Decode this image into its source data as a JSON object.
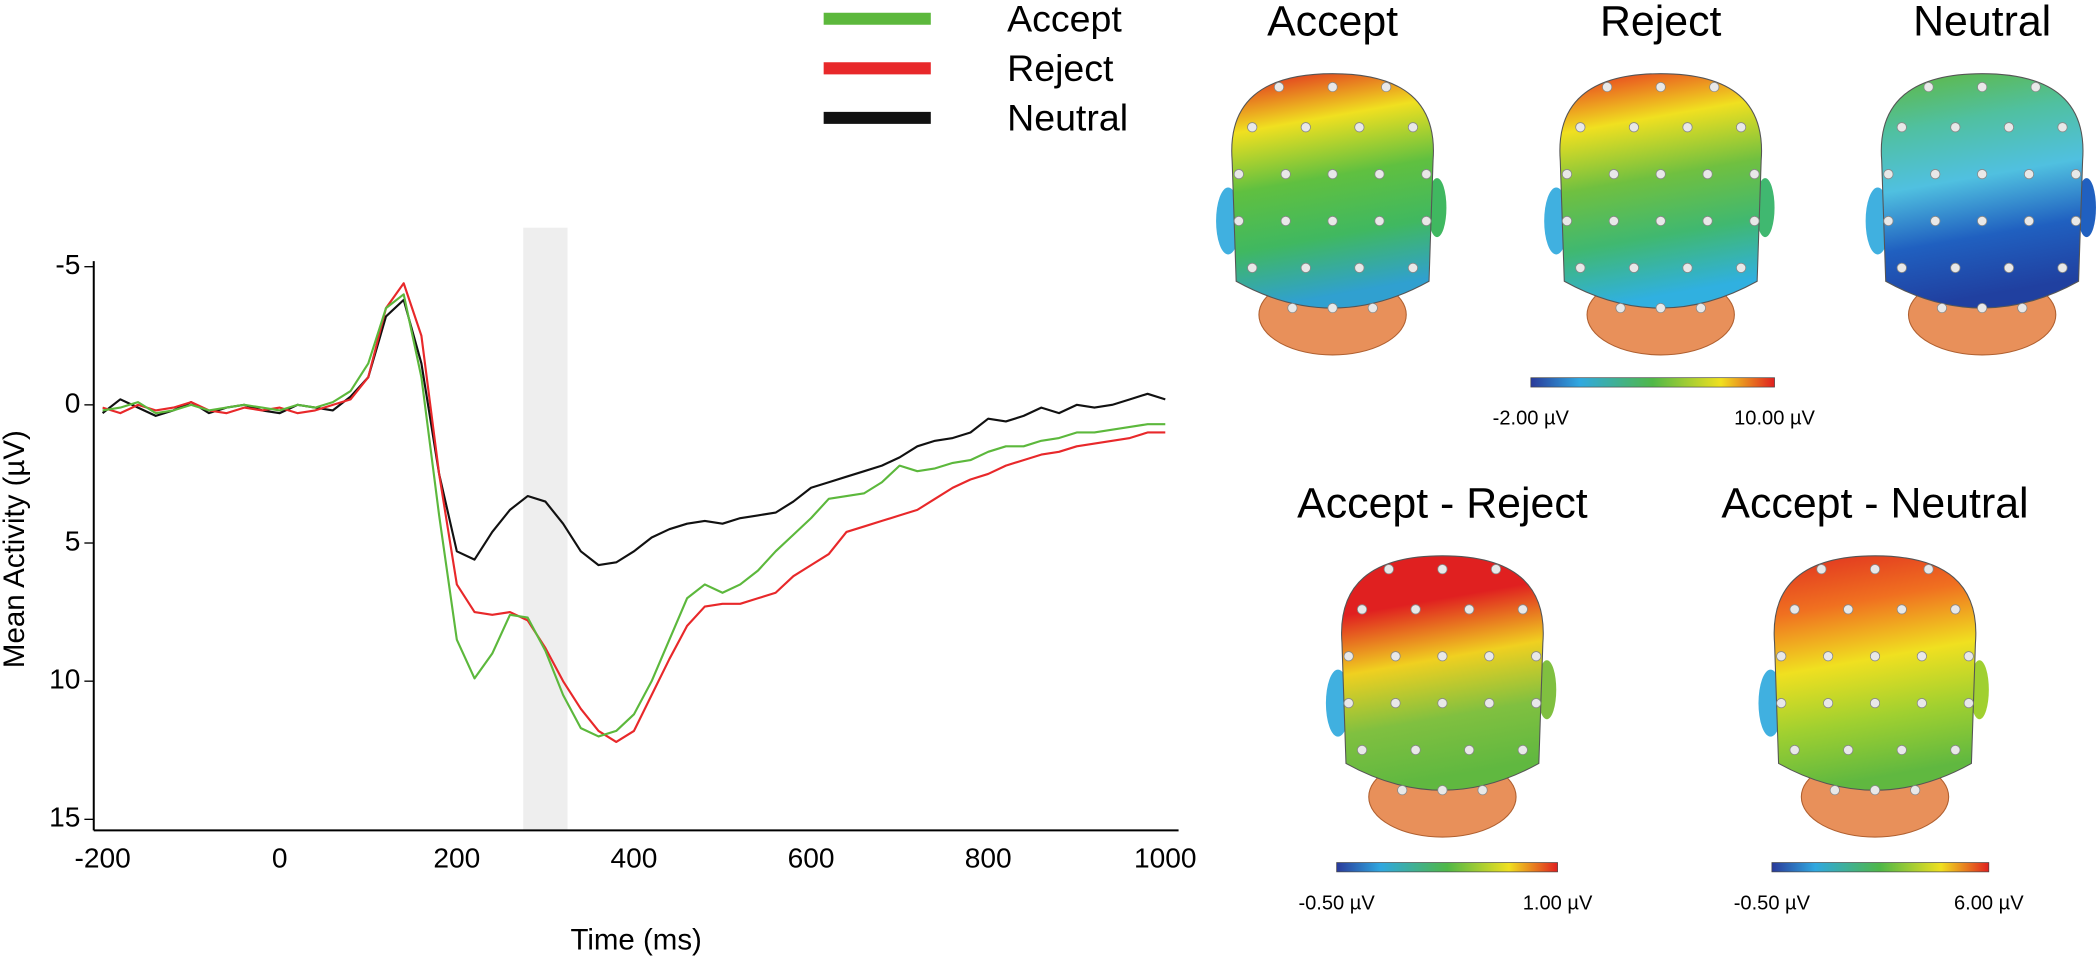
{
  "chart_data": {
    "type": "line",
    "x_label": "Time (ms)",
    "y_label": "Mean Activity (µV)",
    "x": [
      -200,
      -180,
      -160,
      -140,
      -120,
      -100,
      -80,
      -60,
      -40,
      -20,
      0,
      20,
      40,
      60,
      80,
      100,
      120,
      140,
      160,
      180,
      200,
      220,
      240,
      260,
      280,
      300,
      320,
      340,
      360,
      380,
      400,
      420,
      440,
      460,
      480,
      500,
      520,
      540,
      560,
      580,
      600,
      620,
      640,
      660,
      680,
      700,
      720,
      740,
      760,
      780,
      800,
      820,
      840,
      860,
      880,
      900,
      920,
      940,
      960,
      980,
      1000
    ],
    "series": [
      {
        "name": "Accept",
        "color": "#5cb83c",
        "values": [
          0.2,
          0.1,
          -0.1,
          0.3,
          0.2,
          0.0,
          0.2,
          0.1,
          0.0,
          0.1,
          0.2,
          0.0,
          0.1,
          -0.1,
          -0.5,
          -1.5,
          -3.5,
          -4.0,
          -1.0,
          4.0,
          8.5,
          9.9,
          9.0,
          7.6,
          7.7,
          8.9,
          10.5,
          11.7,
          12.0,
          11.8,
          11.2,
          10.0,
          8.5,
          7.0,
          6.5,
          6.8,
          6.5,
          6.0,
          5.3,
          4.7,
          4.1,
          3.4,
          3.3,
          3.2,
          2.8,
          2.2,
          2.4,
          2.3,
          2.1,
          2.0,
          1.7,
          1.5,
          1.5,
          1.3,
          1.2,
          1.0,
          1.0,
          0.9,
          0.8,
          0.7,
          0.7
        ]
      },
      {
        "name": "Reject",
        "color": "#e8282a",
        "values": [
          0.1,
          0.3,
          0.0,
          0.2,
          0.1,
          -0.1,
          0.2,
          0.3,
          0.1,
          0.2,
          0.1,
          0.3,
          0.2,
          0.0,
          -0.2,
          -1.0,
          -3.5,
          -4.4,
          -2.5,
          2.5,
          6.5,
          7.5,
          7.6,
          7.5,
          7.8,
          8.8,
          10.0,
          11.0,
          11.8,
          12.2,
          11.8,
          10.5,
          9.2,
          8.0,
          7.3,
          7.2,
          7.2,
          7.0,
          6.8,
          6.2,
          5.8,
          5.4,
          4.6,
          4.4,
          4.2,
          4.0,
          3.8,
          3.4,
          3.0,
          2.7,
          2.5,
          2.2,
          2.0,
          1.8,
          1.7,
          1.5,
          1.4,
          1.3,
          1.2,
          1.0,
          1.0
        ]
      },
      {
        "name": "Neutral",
        "color": "#111111",
        "values": [
          0.3,
          -0.2,
          0.1,
          0.4,
          0.2,
          -0.1,
          0.3,
          0.1,
          0.0,
          0.2,
          0.3,
          0.0,
          0.1,
          0.2,
          -0.3,
          -1.0,
          -3.2,
          -3.8,
          -1.5,
          2.5,
          5.3,
          5.6,
          4.6,
          3.8,
          3.3,
          3.5,
          4.3,
          5.3,
          5.8,
          5.7,
          5.3,
          4.8,
          4.5,
          4.3,
          4.2,
          4.3,
          4.1,
          4.0,
          3.9,
          3.5,
          3.0,
          2.8,
          2.6,
          2.4,
          2.2,
          1.9,
          1.5,
          1.3,
          1.2,
          1.0,
          0.5,
          0.6,
          0.4,
          0.1,
          0.3,
          0.0,
          0.1,
          0.0,
          -0.2,
          -0.4,
          -0.2
        ]
      }
    ],
    "xlim": [
      -210,
      1015
    ],
    "xticks": [
      -200,
      0,
      200,
      400,
      600,
      800,
      1000
    ],
    "ylim": [
      15.4,
      -5.2
    ],
    "yticks": [
      -5,
      0,
      5,
      10,
      15
    ],
    "y_inverted": true,
    "highlight": [
      275,
      325
    ],
    "highlight_color": "#eeeeee",
    "legend": "top",
    "grid": false
  },
  "topomaps": {
    "maps": [
      {
        "title": "Accept",
        "colors": [
          "#e02020",
          "#f0e020",
          "#60c040",
          "#40b860",
          "#30a0d0"
        ]
      },
      {
        "title": "Reject",
        "colors": [
          "#e83020",
          "#f0e020",
          "#70c040",
          "#40b870",
          "#30b0e0"
        ]
      },
      {
        "title": "Neutral",
        "colors": [
          "#60b840",
          "#50c0a0",
          "#50c0e0",
          "#2060c0",
          "#2040a0"
        ]
      },
      {
        "title": "Accept - Reject",
        "colors": [
          "#e02020",
          "#e02020",
          "#f0d020",
          "#80c040",
          "#60b840"
        ]
      },
      {
        "title": "Accept - Neutral",
        "colors": [
          "#e03020",
          "#f07020",
          "#f0e020",
          "#a0d030",
          "#60b840"
        ]
      }
    ],
    "colorbars": [
      {
        "min_label": "-2.00 µV",
        "max_label": "10.00 µV"
      },
      {
        "min_label": "-0.50 µV",
        "max_label": "1.00 µV"
      },
      {
        "min_label": "-0.50 µV",
        "max_label": "6.00 µV"
      }
    ]
  }
}
